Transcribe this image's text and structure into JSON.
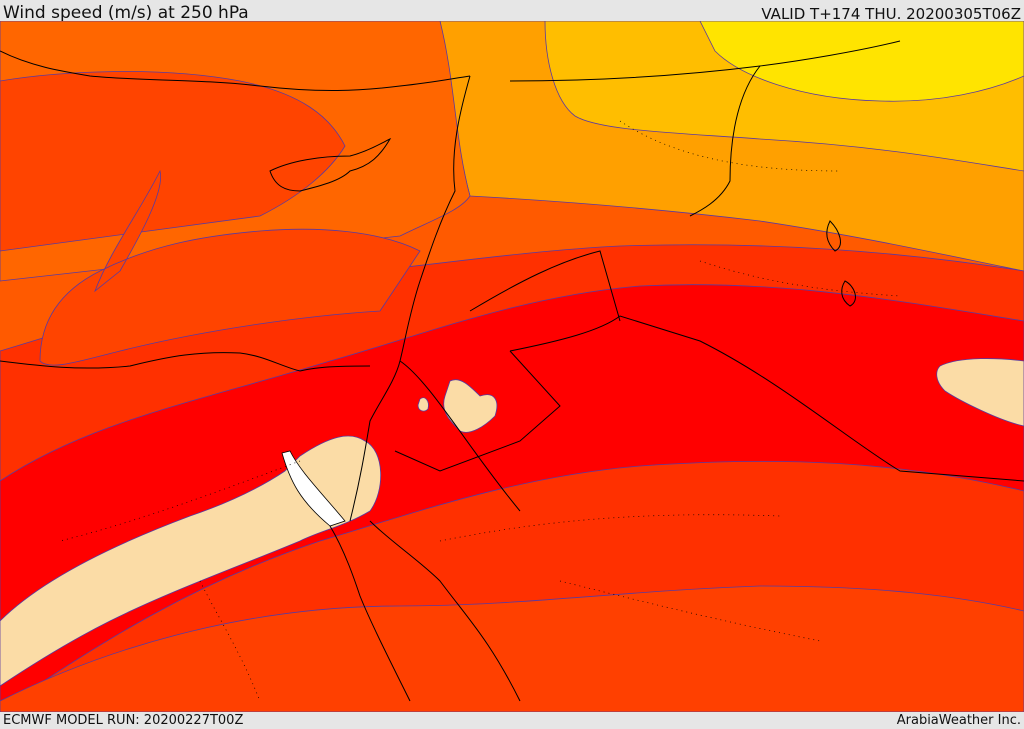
{
  "header": {
    "title": "Wind speed (m/s) at 250 hPa",
    "valid": "VALID T+174 THU. 20200305T06Z"
  },
  "footer": {
    "model_run": "ECMWF MODEL RUN: 20200227T00Z",
    "credit": "ArabiaWeather Inc."
  },
  "colors": {
    "fill_low": "#ff6600",
    "fill_mid_low": "#ff4400",
    "fill_mid": "#ff2200",
    "fill_high": "#ff0000",
    "fill_jet": "#fbdca6",
    "fill_jet_core": "#ffffff",
    "fill_orange": "#ffa000",
    "fill_light_orange": "#ffbe00",
    "fill_yellow": "#ffe400",
    "contour": "#5a3aa0",
    "border": "#000000"
  }
}
